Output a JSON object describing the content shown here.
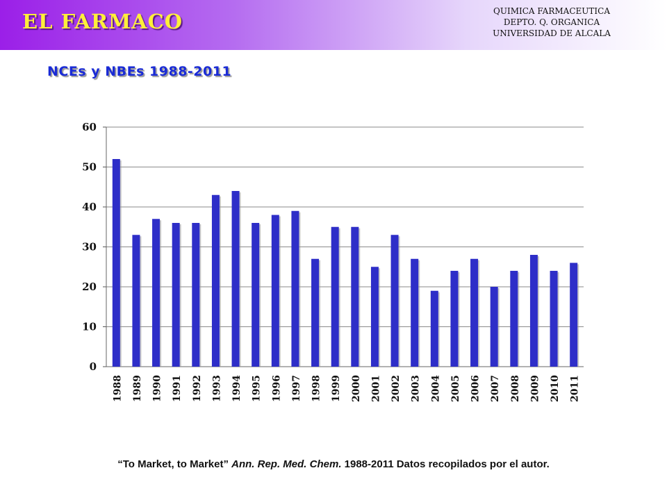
{
  "header": {
    "brand": "EL FARMACO",
    "affiliation": [
      "QUIMICA FARMACEUTICA",
      "DEPTO. Q. ORGANICA",
      "UNIVERSIDAD DE ALCALA"
    ]
  },
  "subtitle": "NCEs y NBEs 1988-2011",
  "chart_data": {
    "type": "bar",
    "title": "",
    "xlabel": "",
    "ylabel": "",
    "categories": [
      "1988",
      "1989",
      "1990",
      "1991",
      "1992",
      "1993",
      "1994",
      "1995",
      "1996",
      "1997",
      "1998",
      "1999",
      "2000",
      "2001",
      "2002",
      "2003",
      "2004",
      "2005",
      "2006",
      "2007",
      "2008",
      "2009",
      "2010",
      "2011"
    ],
    "values": [
      52,
      33,
      37,
      36,
      36,
      43,
      44,
      36,
      38,
      39,
      27,
      35,
      35,
      25,
      33,
      27,
      19,
      24,
      27,
      20,
      24,
      28,
      24,
      26
    ],
    "ylim": [
      0,
      60
    ],
    "yticks": [
      0,
      10,
      20,
      30,
      40,
      50,
      60
    ],
    "grid": true,
    "bar_color": "#2e2ec8"
  },
  "citation": {
    "open_quote_title": "“To Market, to Market”",
    "journal": "Ann. Rep. Med. Chem.",
    "rest": "1988-2011 Datos recopilados por el autor."
  }
}
